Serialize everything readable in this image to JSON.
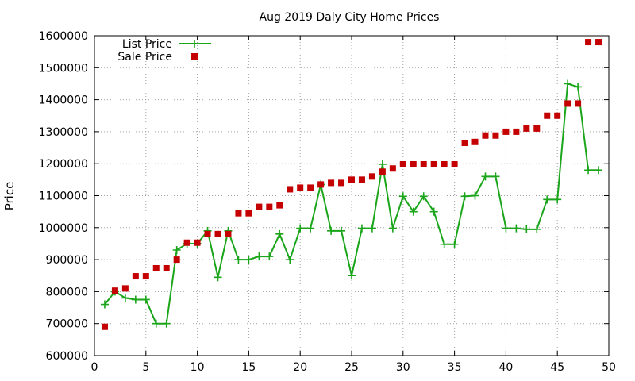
{
  "chart_data": {
    "type": "line",
    "title": "Aug 2019 Daly City Home Prices",
    "xlabel": "",
    "ylabel": "Price",
    "xlim": [
      0,
      50
    ],
    "ylim": [
      600000,
      1600000
    ],
    "xticks": [
      0,
      5,
      10,
      15,
      20,
      25,
      30,
      35,
      40,
      45,
      50
    ],
    "xtick_labels": [
      "0",
      "5",
      "10",
      "15",
      "20",
      "25",
      "30",
      "35",
      "40",
      "45",
      "50"
    ],
    "yticks": [
      600000,
      700000,
      800000,
      900000,
      1000000,
      1100000,
      1200000,
      1300000,
      1400000,
      1500000,
      1600000
    ],
    "ytick_labels": [
      "600000",
      "700000",
      "800000",
      "900000",
      "1000000",
      "1100000",
      "1200000",
      "1300000",
      "1400000",
      "1500000",
      "1600000"
    ],
    "grid": true,
    "legend_position": "top-left",
    "series": [
      {
        "name": "List Price",
        "style": "line+cross",
        "color": "#1aa51a",
        "x": [
          1,
          2,
          3,
          4,
          5,
          6,
          7,
          8,
          9,
          10,
          11,
          12,
          13,
          14,
          15,
          16,
          17,
          18,
          19,
          20,
          21,
          22,
          23,
          24,
          25,
          26,
          27,
          28,
          29,
          30,
          31,
          32,
          33,
          34,
          35,
          36,
          37,
          38,
          39,
          40,
          41,
          42,
          43,
          44,
          45,
          46,
          47,
          48,
          49
        ],
        "y": [
          760000,
          800000,
          780000,
          775000,
          775000,
          700000,
          700000,
          930000,
          950000,
          950000,
          990000,
          845000,
          990000,
          900000,
          900000,
          910000,
          910000,
          980000,
          900000,
          998000,
          998000,
          1135000,
          990000,
          990000,
          850000,
          998000,
          998000,
          1198000,
          998000,
          1098000,
          1050000,
          1098000,
          1050000,
          948000,
          948000,
          1098000,
          1100000,
          1160000,
          1160000,
          998000,
          998000,
          995000,
          995000,
          1088000,
          1088000,
          1450000,
          1440000,
          1180000,
          1180000
        ]
      },
      {
        "name": "Sale Price",
        "style": "square",
        "color": "#c40000",
        "x": [
          1,
          2,
          3,
          4,
          5,
          6,
          7,
          8,
          9,
          10,
          11,
          12,
          13,
          14,
          15,
          16,
          17,
          18,
          19,
          20,
          21,
          22,
          23,
          24,
          25,
          26,
          27,
          28,
          29,
          30,
          31,
          32,
          33,
          34,
          35,
          36,
          37,
          38,
          39,
          40,
          41,
          42,
          43,
          44,
          45,
          46,
          47,
          48,
          49
        ],
        "y": [
          690000,
          803000,
          810000,
          848000,
          848000,
          873000,
          873000,
          900000,
          953000,
          953000,
          980000,
          980000,
          980000,
          1045000,
          1045000,
          1065000,
          1065000,
          1070000,
          1120000,
          1125000,
          1125000,
          1135000,
          1140000,
          1140000,
          1150000,
          1150000,
          1160000,
          1175000,
          1185000,
          1198000,
          1198000,
          1198000,
          1198000,
          1198000,
          1198000,
          1265000,
          1268000,
          1288000,
          1288000,
          1300000,
          1300000,
          1310000,
          1310000,
          1350000,
          1350000,
          1388000,
          1388000,
          1580000,
          1580000
        ]
      }
    ]
  }
}
